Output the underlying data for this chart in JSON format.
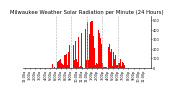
{
  "title": "Milwaukee Weather Solar Radiation per Minute (24 Hours)",
  "bar_color": "#ff0000",
  "background_color": "#ffffff",
  "ylim": [
    0,
    550
  ],
  "yticks": [
    0,
    100,
    200,
    300,
    400,
    500
  ],
  "grid_color": "#b0b0b0",
  "title_fontsize": 3.8,
  "tick_fontsize": 2.5,
  "n_minutes": 1440,
  "peak_minute": 750,
  "peak_value": 500,
  "sunrise_minute": 320,
  "sunset_minute": 1160,
  "dashed_lines_x": [
    360,
    540,
    720,
    900,
    1080
  ],
  "seed": 7
}
